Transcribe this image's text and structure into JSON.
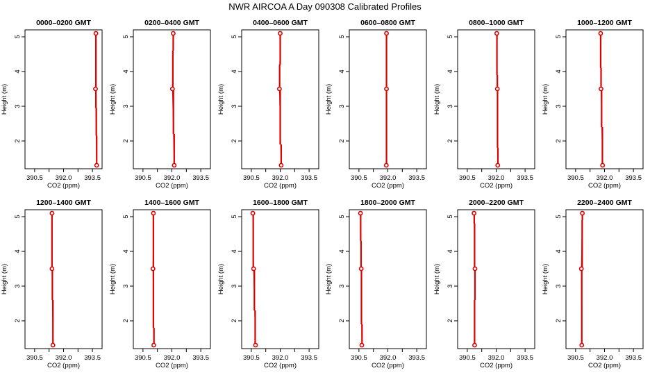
{
  "title": "NWR AIRCOA A  Day 090308  Calibrated Profiles",
  "axes": {
    "xlabel": "CO2 (ppm)",
    "ylabel": "Height (m)",
    "x_ticks": [
      390.5,
      392.0,
      393.5
    ],
    "x_tick_labels": [
      "390.5",
      "392.0",
      "393.5"
    ],
    "y_ticks": [
      2,
      3,
      4,
      5
    ],
    "y_tick_labels": [
      "2",
      "3",
      "4",
      "5"
    ],
    "xlim": [
      390.0,
      394.0
    ],
    "ylim": [
      1.2,
      5.2
    ]
  },
  "colors": {
    "profile": "#dd0000",
    "axis": "#000000"
  },
  "chart_data": [
    {
      "type": "line",
      "title": "0000–0200 GMT",
      "xlabel": "CO2 (ppm)",
      "ylabel": "Height (m)",
      "heights": [
        1.3,
        3.5,
        5.1
      ],
      "values": [
        393.72,
        393.66,
        393.68
      ],
      "ranges": [
        {
          "ylo": 1.32,
          "yhi": 2.15,
          "x": 393.72
        },
        {
          "ylo": 2.15,
          "yhi": 2.95,
          "x": 393.7
        },
        {
          "ylo": 2.95,
          "yhi": 3.48,
          "x": 393.68
        },
        {
          "ylo": 3.52,
          "yhi": 5.08,
          "x": 393.68
        }
      ]
    },
    {
      "type": "line",
      "title": "0200–0400 GMT",
      "xlabel": "CO2 (ppm)",
      "ylabel": "Height (m)",
      "heights": [
        1.3,
        3.5,
        5.1
      ],
      "values": [
        392.12,
        392.03,
        392.07
      ],
      "ranges": [
        {
          "ylo": 1.32,
          "yhi": 2.2,
          "x": 392.12
        },
        {
          "ylo": 2.2,
          "yhi": 3.48,
          "x": 392.08
        },
        {
          "ylo": 3.52,
          "yhi": 4.6,
          "x": 392.05
        },
        {
          "ylo": 4.6,
          "yhi": 5.08,
          "x": 392.07
        }
      ]
    },
    {
      "type": "line",
      "title": "0400–0600 GMT",
      "xlabel": "CO2 (ppm)",
      "ylabel": "Height (m)",
      "heights": [
        1.3,
        3.5,
        5.1
      ],
      "values": [
        392.05,
        391.96,
        392.0
      ],
      "ranges": [
        {
          "ylo": 1.32,
          "yhi": 1.9,
          "x": 392.05
        },
        {
          "ylo": 1.9,
          "yhi": 3.48,
          "x": 392.0
        },
        {
          "ylo": 3.52,
          "yhi": 4.2,
          "x": 391.97
        },
        {
          "ylo": 4.2,
          "yhi": 5.08,
          "x": 392.0
        }
      ]
    },
    {
      "type": "line",
      "title": "0600–0800 GMT",
      "xlabel": "CO2 (ppm)",
      "ylabel": "Height (m)",
      "heights": [
        1.3,
        3.5,
        5.1
      ],
      "values": [
        391.92,
        391.93,
        391.93
      ],
      "ranges": [
        {
          "ylo": 1.32,
          "yhi": 2.5,
          "x": 391.93
        },
        {
          "ylo": 2.5,
          "yhi": 3.48,
          "x": 391.93
        },
        {
          "ylo": 3.52,
          "yhi": 5.08,
          "x": 391.93
        }
      ]
    },
    {
      "type": "line",
      "title": "0800–1000 GMT",
      "xlabel": "CO2 (ppm)",
      "ylabel": "Height (m)",
      "heights": [
        1.3,
        3.5,
        5.1
      ],
      "values": [
        392.08,
        392.06,
        392.03
      ],
      "ranges": [
        {
          "ylo": 1.32,
          "yhi": 1.8,
          "x": 392.09
        },
        {
          "ylo": 1.8,
          "yhi": 3.48,
          "x": 392.07
        },
        {
          "ylo": 3.52,
          "yhi": 3.9,
          "x": 392.06
        },
        {
          "ylo": 3.9,
          "yhi": 5.08,
          "x": 392.04
        }
      ]
    },
    {
      "type": "line",
      "title": "1000–1200 GMT",
      "xlabel": "CO2 (ppm)",
      "ylabel": "Height (m)",
      "heights": [
        1.3,
        3.5,
        5.1
      ],
      "values": [
        391.9,
        391.82,
        391.8
      ],
      "ranges": [
        {
          "ylo": 1.32,
          "yhi": 2.4,
          "x": 391.89
        },
        {
          "ylo": 2.4,
          "yhi": 3.48,
          "x": 391.85
        },
        {
          "ylo": 3.52,
          "yhi": 4.1,
          "x": 391.82
        },
        {
          "ylo": 4.1,
          "yhi": 5.08,
          "x": 391.8
        }
      ]
    },
    {
      "type": "line",
      "title": "1200–1400 GMT",
      "xlabel": "CO2 (ppm)",
      "ylabel": "Height (m)",
      "heights": [
        1.3,
        3.5,
        5.1
      ],
      "values": [
        391.45,
        391.4,
        391.4
      ],
      "ranges": [
        {
          "ylo": 1.32,
          "yhi": 2.6,
          "x": 391.45
        },
        {
          "ylo": 2.6,
          "yhi": 3.48,
          "x": 391.42
        },
        {
          "ylo": 3.52,
          "yhi": 4.15,
          "x": 391.4
        },
        {
          "ylo": 4.15,
          "yhi": 5.08,
          "x": 391.4
        }
      ]
    },
    {
      "type": "line",
      "title": "1400–1600 GMT",
      "xlabel": "CO2 (ppm)",
      "ylabel": "Height (m)",
      "heights": [
        1.3,
        3.5,
        5.1
      ],
      "values": [
        391.06,
        391.02,
        391.04
      ],
      "ranges": [
        {
          "ylo": 1.32,
          "yhi": 1.8,
          "x": 391.07
        },
        {
          "ylo": 1.8,
          "yhi": 3.48,
          "x": 391.04
        },
        {
          "ylo": 3.52,
          "yhi": 5.08,
          "x": 391.04
        }
      ]
    },
    {
      "type": "line",
      "title": "1600–1800 GMT",
      "xlabel": "CO2 (ppm)",
      "ylabel": "Height (m)",
      "heights": [
        1.3,
        3.5,
        5.1
      ],
      "values": [
        390.72,
        390.62,
        390.58
      ],
      "ranges": [
        {
          "ylo": 1.32,
          "yhi": 2.3,
          "x": 390.7
        },
        {
          "ylo": 2.3,
          "yhi": 3.48,
          "x": 390.66
        },
        {
          "ylo": 3.52,
          "yhi": 5.08,
          "x": 390.6
        }
      ]
    },
    {
      "type": "line",
      "title": "1800–2000 GMT",
      "xlabel": "CO2 (ppm)",
      "ylabel": "Height (m)",
      "heights": [
        1.3,
        3.5,
        5.1
      ],
      "values": [
        390.65,
        390.62,
        390.58
      ],
      "ranges": [
        {
          "ylo": 1.32,
          "yhi": 1.9,
          "x": 390.66
        },
        {
          "ylo": 1.9,
          "yhi": 3.48,
          "x": 390.63
        },
        {
          "ylo": 3.52,
          "yhi": 4.3,
          "x": 390.61
        },
        {
          "ylo": 4.3,
          "yhi": 5.08,
          "x": 390.59
        }
      ]
    },
    {
      "type": "line",
      "title": "2000–2200 GMT",
      "xlabel": "CO2 (ppm)",
      "ylabel": "Height (m)",
      "heights": [
        1.3,
        3.5,
        5.1
      ],
      "values": [
        390.88,
        390.9,
        390.85
      ],
      "ranges": [
        {
          "ylo": 1.32,
          "yhi": 2.6,
          "x": 390.88
        },
        {
          "ylo": 2.6,
          "yhi": 3.48,
          "x": 390.9
        },
        {
          "ylo": 3.52,
          "yhi": 4.8,
          "x": 390.88
        },
        {
          "ylo": 4.8,
          "yhi": 5.08,
          "x": 390.86
        }
      ]
    },
    {
      "type": "line",
      "title": "2200–2400 GMT",
      "xlabel": "CO2 (ppm)",
      "ylabel": "Height (m)",
      "heights": [
        1.3,
        3.5,
        5.1
      ],
      "values": [
        390.82,
        390.8,
        390.85
      ],
      "ranges": [
        {
          "ylo": 1.32,
          "yhi": 3.48,
          "x": 390.82
        },
        {
          "ylo": 3.52,
          "yhi": 4.9,
          "x": 390.84
        },
        {
          "ylo": 4.9,
          "yhi": 5.08,
          "x": 390.85
        }
      ]
    }
  ]
}
